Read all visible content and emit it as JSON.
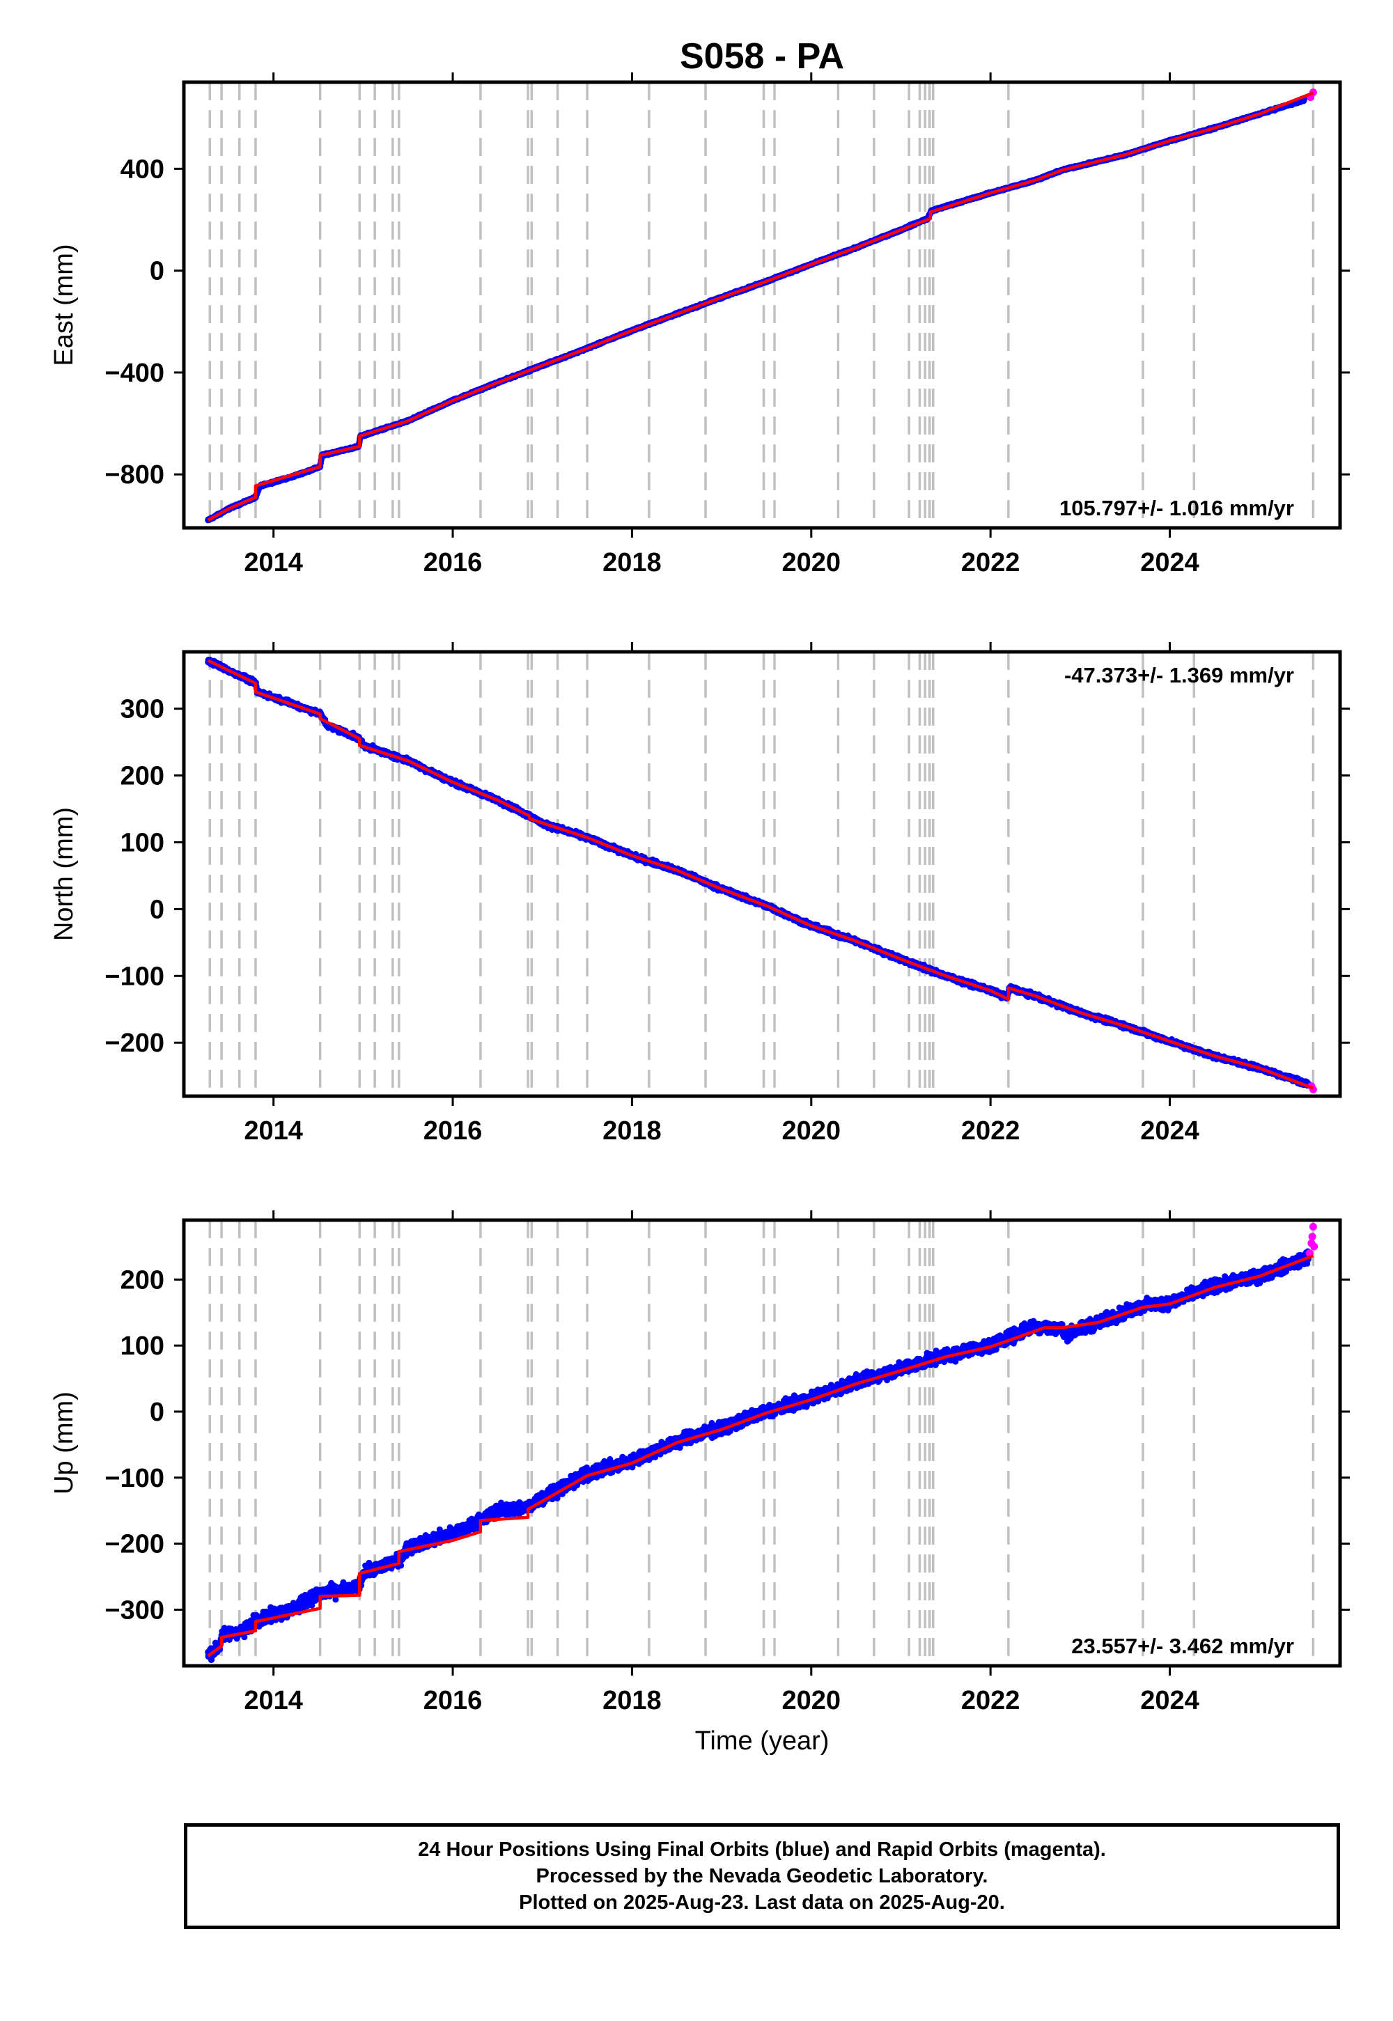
{
  "title": "S058 - PA",
  "xlabel": "Time (year)",
  "colors": {
    "final_orbits": "#0000ff",
    "rapid_orbits": "#ff00ff",
    "model_fit": "#ff0000",
    "step_lines": "#c0c0c0"
  },
  "xticks": [
    2014,
    2016,
    2018,
    2020,
    2022,
    2024
  ],
  "xlim": [
    2013.0,
    2025.9
  ],
  "event_lines": [
    2013.29,
    2013.42,
    2013.62,
    2013.8,
    2014.52,
    2014.96,
    2015.13,
    2015.33,
    2015.4,
    2016.31,
    2016.84,
    2016.88,
    2017.17,
    2017.5,
    2018.19,
    2018.82,
    2019.47,
    2019.59,
    2020.3,
    2020.7,
    2021.09,
    2021.21,
    2021.27,
    2021.32,
    2021.36,
    2022.2,
    2023.7,
    2024.27,
    2025.6
  ],
  "caption": {
    "line1": "24 Hour Positions Using Final Orbits (blue) and Rapid Orbits (magenta).",
    "line2": "Processed by the Nevada Geodetic Laboratory.",
    "line3": "Plotted on 2025-Aug-23. Last data on 2025-Aug-20."
  },
  "chart_data": [
    {
      "type": "scatter",
      "component": "east",
      "ylabel": "East (mm)",
      "ylim": [
        -1010,
        740
      ],
      "yticks": [
        -800,
        -400,
        0,
        400
      ],
      "rate_label": "105.797+/- 1.016 mm/yr",
      "noise": 3,
      "series": [
        {
          "name": "Final Orbits",
          "x": [
            2013.27,
            2013.5,
            2013.8,
            2013.85,
            2014.2,
            2014.52,
            2014.54,
            2014.95,
            2014.97,
            2015.5,
            2016.0,
            2016.5,
            2017.0,
            2017.5,
            2018.0,
            2018.5,
            2019.0,
            2019.5,
            2020.0,
            2020.5,
            2021.0,
            2021.3,
            2021.34,
            2022.0,
            2022.5,
            2022.8,
            2023.5,
            2024.0,
            2024.5,
            2025.0,
            2025.5
          ],
          "y": [
            -980,
            -935,
            -890,
            -845,
            -810,
            -770,
            -725,
            -690,
            -650,
            -590,
            -510,
            -440,
            -372,
            -305,
            -235,
            -170,
            -105,
            -42,
            25,
            90,
            160,
            205,
            235,
            305,
            355,
            395,
            455,
            510,
            560,
            615,
            670
          ]
        },
        {
          "name": "Rapid Orbits",
          "x": [
            2025.57,
            2025.6
          ],
          "y": [
            681,
            700
          ]
        }
      ],
      "fit": {
        "x": [
          2013.27,
          2013.5,
          2013.8,
          2013.8,
          2014.52,
          2014.52,
          2014.96,
          2014.96,
          2015.5,
          2016.0,
          2016.5,
          2017.0,
          2017.5,
          2018.0,
          2018.5,
          2019.0,
          2019.5,
          2020.0,
          2020.5,
          2021.0,
          2021.33,
          2021.33,
          2022.0,
          2022.5,
          2022.8,
          2023.5,
          2024.0,
          2024.5,
          2025.0,
          2025.6
        ],
        "y": [
          -980,
          -935,
          -890,
          -845,
          -770,
          -725,
          -690,
          -650,
          -590,
          -510,
          -440,
          -372,
          -305,
          -235,
          -170,
          -105,
          -42,
          25,
          90,
          160,
          205,
          230,
          305,
          355,
          395,
          455,
          510,
          560,
          615,
          698
        ]
      }
    },
    {
      "type": "scatter",
      "component": "north",
      "ylabel": "North (mm)",
      "ylim": [
        -280,
        385
      ],
      "yticks": [
        -200,
        -100,
        0,
        100,
        200,
        300
      ],
      "rate_label": "-47.373+/- 1.369 mm/yr",
      "noise": 3,
      "series": [
        {
          "name": "Final Orbits",
          "x": [
            2013.27,
            2013.5,
            2013.8,
            2013.82,
            2014.2,
            2014.52,
            2014.6,
            2014.96,
            2015.0,
            2015.5,
            2016.0,
            2016.5,
            2016.85,
            2017.0,
            2017.5,
            2018.0,
            2018.5,
            2019.0,
            2019.5,
            2020.0,
            2020.5,
            2021.0,
            2021.5,
            2022.0,
            2022.19,
            2022.21,
            2022.5,
            2023.0,
            2023.5,
            2024.0,
            2024.5,
            2025.0,
            2025.55
          ],
          "y": [
            372,
            357,
            338,
            325,
            308,
            292,
            275,
            255,
            245,
            222,
            190,
            163,
            140,
            128,
            107,
            80,
            58,
            30,
            5,
            -25,
            -48,
            -75,
            -100,
            -122,
            -132,
            -118,
            -130,
            -155,
            -175,
            -198,
            -220,
            -238,
            -262
          ]
        },
        {
          "name": "Rapid Orbits",
          "x": [
            2025.58,
            2025.6
          ],
          "y": [
            -265,
            -270
          ]
        }
      ],
      "fit": {
        "x": [
          2013.27,
          2013.8,
          2013.8,
          2014.52,
          2014.52,
          2014.96,
          2014.96,
          2015.5,
          2016.0,
          2016.5,
          2016.85,
          2016.86,
          2017.5,
          2018.0,
          2018.5,
          2019.0,
          2019.5,
          2020.0,
          2020.5,
          2021.0,
          2021.5,
          2022.0,
          2022.2,
          2022.2,
          2022.5,
          2023.0,
          2023.5,
          2024.0,
          2024.5,
          2025.0,
          2025.6
        ],
        "y": [
          372,
          338,
          325,
          292,
          285,
          255,
          245,
          222,
          190,
          163,
          140,
          135,
          107,
          80,
          58,
          30,
          5,
          -25,
          -48,
          -75,
          -100,
          -122,
          -135,
          -118,
          -130,
          -155,
          -175,
          -198,
          -220,
          -238,
          -268
        ]
      }
    },
    {
      "type": "scatter",
      "component": "up",
      "ylabel": "Up (mm)",
      "ylim": [
        -385,
        290
      ],
      "yticks": [
        -300,
        -200,
        -100,
        0,
        100,
        200
      ],
      "rate_label": "23.557+/- 3.462 mm/yr",
      "noise": 8,
      "series": [
        {
          "name": "Final Orbits",
          "x": [
            2013.27,
            2013.4,
            2013.42,
            2013.7,
            2013.8,
            2014.2,
            2014.52,
            2014.8,
            2014.96,
            2015.0,
            2015.4,
            2015.5,
            2016.0,
            2016.31,
            2016.5,
            2016.84,
            2017.0,
            2017.5,
            2018.0,
            2018.5,
            2019.0,
            2019.5,
            2020.0,
            2020.5,
            2021.0,
            2021.5,
            2022.0,
            2022.5,
            2022.8,
            2022.82,
            2023.2,
            2023.7,
            2024.0,
            2024.5,
            2025.0,
            2025.55
          ],
          "y": [
            -370,
            -355,
            -340,
            -330,
            -315,
            -300,
            -275,
            -270,
            -265,
            -245,
            -225,
            -205,
            -185,
            -165,
            -150,
            -145,
            -130,
            -95,
            -75,
            -45,
            -25,
            0,
            20,
            45,
            65,
            85,
            100,
            130,
            125,
            115,
            135,
            160,
            165,
            190,
            205,
            235
          ]
        },
        {
          "name": "Rapid Orbits",
          "x": [
            2025.56,
            2025.58,
            2025.59,
            2025.6,
            2025.61
          ],
          "y": [
            240,
            255,
            265,
            280,
            250
          ]
        }
      ],
      "fit": {
        "x": [
          2013.27,
          2013.42,
          2013.42,
          2013.8,
          2013.8,
          2014.52,
          2014.52,
          2014.96,
          2014.96,
          2015.4,
          2015.4,
          2016.0,
          2016.31,
          2016.31,
          2016.84,
          2016.84,
          2017.5,
          2018.0,
          2018.5,
          2019.0,
          2019.5,
          2020.0,
          2020.5,
          2021.0,
          2021.5,
          2022.0,
          2022.5,
          2022.6,
          2022.8,
          2023.2,
          2023.7,
          2024.0,
          2024.5,
          2025.0,
          2025.6
        ],
        "y": [
          -370,
          -355,
          -342,
          -332,
          -318,
          -298,
          -280,
          -278,
          -245,
          -230,
          -212,
          -195,
          -182,
          -165,
          -160,
          -148,
          -97,
          -78,
          -47,
          -27,
          -2,
          18,
          42,
          62,
          83,
          98,
          122,
          127,
          127,
          135,
          158,
          163,
          188,
          205,
          236
        ]
      }
    }
  ]
}
